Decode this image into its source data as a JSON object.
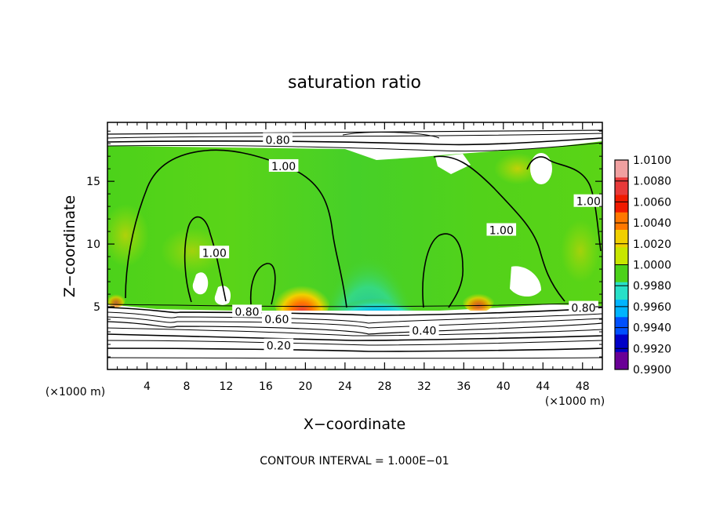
{
  "chart_data": {
    "type": "heatmap",
    "title": "saturation ratio",
    "xlabel": "X−coordinate",
    "ylabel": "Z−coordinate",
    "x_unit_left": "(×1000 m)",
    "x_unit_right": "(×1000 m)",
    "xlim": [
      0,
      50
    ],
    "ylim": [
      0,
      19.7
    ],
    "x_ticks": [
      4,
      8,
      12,
      16,
      20,
      24,
      28,
      32,
      36,
      40,
      44,
      48
    ],
    "y_ticks": [
      5,
      10,
      15
    ],
    "colorbar": {
      "min": 0.99,
      "max": 1.01,
      "labels": [
        "1.0100",
        "1.0080",
        "1.0060",
        "1.0040",
        "1.0020",
        "1.0000",
        "0.9980",
        "0.9960",
        "0.9940",
        "0.9920",
        "0.9900"
      ],
      "colors": [
        "#f0a0a0",
        "#e83a3a",
        "#f01a00",
        "#ff7800",
        "#f0d000",
        "#c8e600",
        "#4cd21a",
        "#28e0c8",
        "#00b4ff",
        "#0050ff",
        "#0000c8",
        "#6a0096"
      ]
    },
    "contour_labels": [
      {
        "text": "0.80",
        "x": 17.2,
        "y": 18.3
      },
      {
        "text": "1.00",
        "x": 17.8,
        "y": 16.2
      },
      {
        "text": "1.00",
        "x": 10.8,
        "y": 9.3
      },
      {
        "text": "1.00",
        "x": 39.8,
        "y": 11.1
      },
      {
        "text": "1.00",
        "x": 48.6,
        "y": 13.4
      },
      {
        "text": "0.80",
        "x": 14.1,
        "y": 4.6
      },
      {
        "text": "0.60",
        "x": 17.1,
        "y": 4.0
      },
      {
        "text": "0.40",
        "x": 32.0,
        "y": 3.1
      },
      {
        "text": "0.80",
        "x": 48.1,
        "y": 4.9
      },
      {
        "text": "0.20",
        "x": 17.3,
        "y": 1.9
      }
    ],
    "contour_interval_text": "CONTOUR INTERVAL = 1.000E−01"
  }
}
